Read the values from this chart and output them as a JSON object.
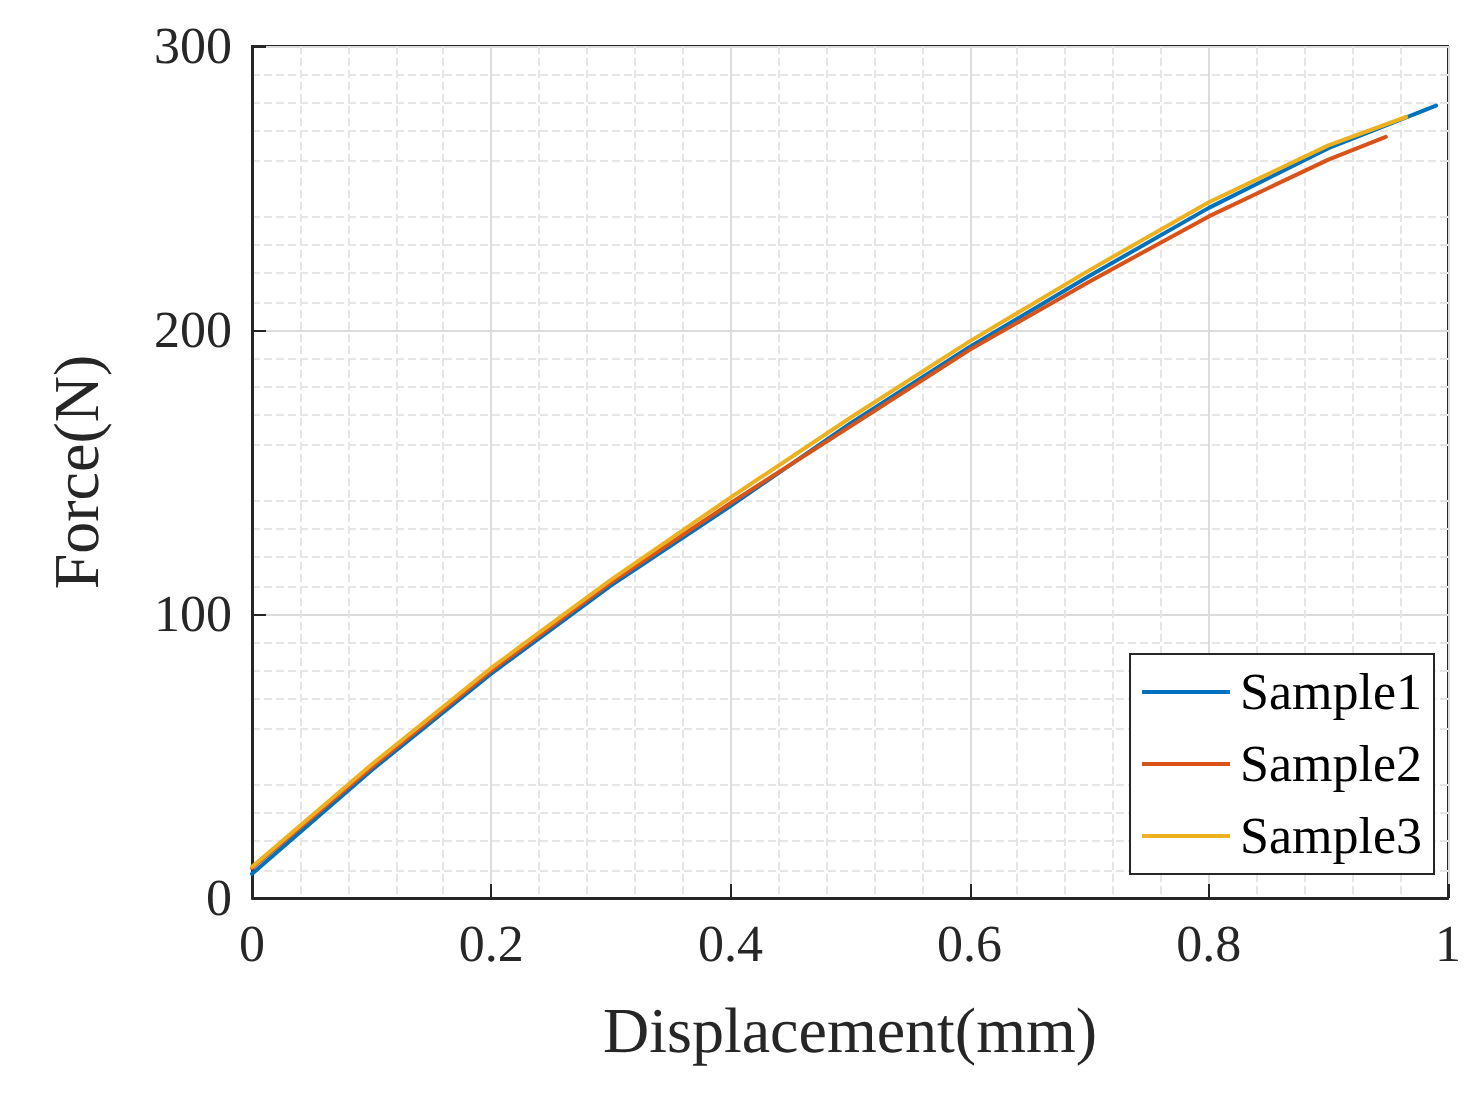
{
  "chart_data": {
    "type": "line",
    "xlabel": "Displacement(mm)",
    "ylabel": "Force(N)",
    "xlim": [
      0,
      1
    ],
    "xticks": [
      0,
      0.2,
      0.4,
      0.6,
      0.8,
      1
    ],
    "ylim": [
      0,
      300
    ],
    "yticks": [
      0,
      100,
      200,
      300
    ],
    "grid": true,
    "legend": "bottom right",
    "marker": "none",
    "line_style": "solid",
    "series": [
      {
        "name": "Sample1",
        "color": "#0072bd",
        "x": [
          0,
          0.1,
          0.2,
          0.3,
          0.4,
          0.5,
          0.6,
          0.7,
          0.8,
          0.9,
          0.99
        ],
        "values": [
          8.5,
          45,
          79,
          110,
          138,
          167,
          194,
          219,
          243,
          264,
          279
        ]
      },
      {
        "name": "Sample2",
        "color": "#d95319",
        "x": [
          0,
          0.1,
          0.2,
          0.3,
          0.4,
          0.5,
          0.6,
          0.7,
          0.8,
          0.9,
          0.948
        ],
        "values": [
          10.5,
          46,
          80,
          111,
          139,
          166,
          193,
          217,
          240,
          260,
          268
        ]
      },
      {
        "name": "Sample3",
        "color": "#edb120",
        "x": [
          0,
          0.1,
          0.2,
          0.3,
          0.4,
          0.5,
          0.6,
          0.7,
          0.8,
          0.9,
          0.965
        ],
        "values": [
          11,
          47,
          81,
          112,
          141,
          169,
          196,
          221,
          245,
          265,
          275
        ]
      }
    ]
  }
}
